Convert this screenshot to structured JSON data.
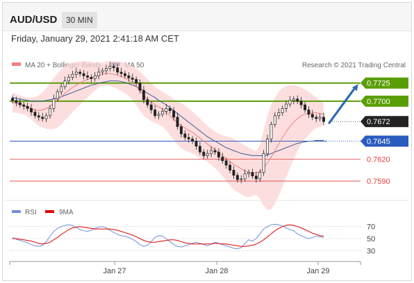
{
  "header": {
    "pair": "AUD/USD",
    "interval": "30 MIN"
  },
  "datetime": "Friday, January 29, 2021 2:41:18 AM CET",
  "legend": {
    "ma20_bollinger": "MA 20 + Bollinger Bands",
    "ma50": "MA 50",
    "research": "Research © 2021 Trading Central"
  },
  "rsi_legend": {
    "rsi": "RSI",
    "ma9": "9MA"
  },
  "colors": {
    "support_resistance": "#5a9e07",
    "current_line": "#2a5bbf",
    "support": "#e23c3c",
    "bollinger": "#fcd3d3",
    "ma20": "#f08080",
    "ma50": "#3a5d9a",
    "arrow": "#2d69b5",
    "rsi": "#6d8fdc",
    "rsi_ma": "#e00000",
    "candle": "#222222"
  },
  "chart_data": [
    {
      "type": "candlestick",
      "title": "AUD/USD",
      "timeframe": "30 MIN",
      "x_ticks": [
        "Jan 27",
        "Jan 28",
        "Jan 29"
      ],
      "ylim": [
        0.757,
        0.774
      ],
      "levels": [
        {
          "label": "0.7725",
          "value": 0.7725,
          "kind": "resistance"
        },
        {
          "label": "0.7700",
          "value": 0.77,
          "kind": "resistance"
        },
        {
          "label": "0.7672",
          "value": 0.7672,
          "kind": "last"
        },
        {
          "label": "0.7645",
          "value": 0.7645,
          "kind": "pivot"
        },
        {
          "label": "0.7620",
          "value": 0.762,
          "kind": "support"
        },
        {
          "label": "0.7590",
          "value": 0.759,
          "kind": "support"
        }
      ],
      "price_path": [
        0.7701,
        0.7698,
        0.7695,
        0.7693,
        0.769,
        0.7685,
        0.768,
        0.7678,
        0.7676,
        0.768,
        0.769,
        0.7703,
        0.7713,
        0.772,
        0.7728,
        0.7733,
        0.7737,
        0.774,
        0.7738,
        0.7735,
        0.7733,
        0.7731,
        0.7735,
        0.774,
        0.7742,
        0.7745,
        0.7748,
        0.7746,
        0.774,
        0.7738,
        0.7735,
        0.7732,
        0.773,
        0.7725,
        0.7715,
        0.7702,
        0.7695,
        0.7688,
        0.768,
        0.7682,
        0.7686,
        0.769,
        0.7687,
        0.7678,
        0.7665,
        0.7655,
        0.765,
        0.7648,
        0.7645,
        0.7638,
        0.763,
        0.7625,
        0.7628,
        0.7632,
        0.763,
        0.7623,
        0.7618,
        0.7612,
        0.7605,
        0.7598,
        0.7592,
        0.7593,
        0.76,
        0.7602,
        0.7597,
        0.7593,
        0.7602,
        0.7628,
        0.7648,
        0.7668,
        0.768,
        0.7684,
        0.769,
        0.7696,
        0.7701,
        0.7703,
        0.77,
        0.7695,
        0.7688,
        0.7682,
        0.7678,
        0.7676,
        0.7678,
        0.7672
      ],
      "ma20": [
        0.7698,
        0.7697,
        0.7696,
        0.7694,
        0.7692,
        0.769,
        0.7688,
        0.7687,
        0.7688,
        0.769,
        0.7693,
        0.7697,
        0.7701,
        0.7706,
        0.7711,
        0.7715,
        0.7719,
        0.7722,
        0.7725,
        0.7728,
        0.773,
        0.7732,
        0.7734,
        0.7736,
        0.7737,
        0.7738,
        0.7738,
        0.7737,
        0.7736,
        0.7734,
        0.7732,
        0.7729,
        0.7725,
        0.772,
        0.7714,
        0.7708,
        0.7703,
        0.7699,
        0.7695,
        0.7692,
        0.7689,
        0.7685,
        0.768,
        0.7675,
        0.767,
        0.7666,
        0.7663,
        0.766,
        0.7657,
        0.7653,
        0.7649,
        0.7645,
        0.7641,
        0.7637,
        0.7633,
        0.7629,
        0.7625,
        0.7621,
        0.7617,
        0.7613,
        0.761,
        0.7607,
        0.7604,
        0.7602,
        0.7601,
        0.7601,
        0.7603,
        0.7608,
        0.7615,
        0.7623,
        0.7632,
        0.7641,
        0.765,
        0.7658,
        0.7665,
        0.7671,
        0.7676,
        0.768,
        0.7682,
        0.7683,
        0.7684,
        0.7684,
        0.7683,
        0.7682
      ],
      "ma50": [
        0.7705,
        0.7704,
        0.7703,
        0.7702,
        0.7701,
        0.77,
        0.77,
        0.77,
        0.77,
        0.7701,
        0.7702,
        0.7703,
        0.7705,
        0.7706,
        0.7708,
        0.771,
        0.7712,
        0.7714,
        0.7716,
        0.7718,
        0.772,
        0.7722,
        0.7723,
        0.7725,
        0.7726,
        0.7727,
        0.7728,
        0.7728,
        0.7728,
        0.7727,
        0.7726,
        0.7724,
        0.7722,
        0.772,
        0.7717,
        0.7714,
        0.7711,
        0.7708,
        0.7705,
        0.7701,
        0.7698,
        0.7695,
        0.7691,
        0.7687,
        0.7683,
        0.7679,
        0.7675,
        0.7671,
        0.7667,
        0.7663,
        0.7659,
        0.7655,
        0.7651,
        0.7648,
        0.7645,
        0.7642,
        0.7639,
        0.7636,
        0.7634,
        0.7632,
        0.763,
        0.7628,
        0.7627,
        0.7626,
        0.7625,
        0.7625,
        0.7625,
        0.7625,
        0.7626,
        0.7628,
        0.763,
        0.7632,
        0.7634,
        0.7636,
        0.7638,
        0.764,
        0.7642,
        0.7643,
        0.7644,
        0.7645,
        0.7645,
        0.7646,
        0.7646,
        0.7646
      ],
      "bollinger_upper": [
        0.7712,
        0.771,
        0.7708,
        0.7706,
        0.7705,
        0.7705,
        0.7706,
        0.7708,
        0.7712,
        0.7718,
        0.7725,
        0.7732,
        0.7738,
        0.7744,
        0.7748,
        0.7751,
        0.7753,
        0.7754,
        0.7755,
        0.7755,
        0.7755,
        0.7754,
        0.7753,
        0.7753,
        0.7753,
        0.7754,
        0.7755,
        0.7755,
        0.7755,
        0.7754,
        0.7753,
        0.7751,
        0.7748,
        0.7745,
        0.7741,
        0.7736,
        0.773,
        0.7725,
        0.772,
        0.7716,
        0.7713,
        0.771,
        0.7707,
        0.7703,
        0.77,
        0.7697,
        0.7694,
        0.769,
        0.7686,
        0.7681,
        0.7676,
        0.7671,
        0.7666,
        0.7662,
        0.7658,
        0.7655,
        0.7653,
        0.7652,
        0.765,
        0.7648,
        0.7645,
        0.7642,
        0.7639,
        0.7636,
        0.7633,
        0.7631,
        0.764,
        0.766,
        0.768,
        0.7695,
        0.7705,
        0.7713,
        0.7718,
        0.7721,
        0.7722,
        0.7722,
        0.7721,
        0.7719,
        0.7716,
        0.7713,
        0.7709,
        0.7705,
        0.7701,
        0.7698
      ],
      "bollinger_lower": [
        0.7684,
        0.7684,
        0.7683,
        0.7682,
        0.7679,
        0.7675,
        0.767,
        0.7666,
        0.7664,
        0.7662,
        0.7661,
        0.7662,
        0.7664,
        0.7668,
        0.7674,
        0.7679,
        0.7685,
        0.769,
        0.7695,
        0.7701,
        0.7705,
        0.771,
        0.7715,
        0.7719,
        0.7721,
        0.7722,
        0.7721,
        0.7719,
        0.7717,
        0.7714,
        0.7711,
        0.7707,
        0.7702,
        0.7695,
        0.7687,
        0.768,
        0.7676,
        0.7673,
        0.767,
        0.7668,
        0.7665,
        0.766,
        0.7653,
        0.7647,
        0.764,
        0.7635,
        0.7632,
        0.763,
        0.7628,
        0.7625,
        0.7622,
        0.7619,
        0.7616,
        0.7612,
        0.7608,
        0.7603,
        0.7597,
        0.759,
        0.7584,
        0.7578,
        0.7575,
        0.7572,
        0.7569,
        0.7568,
        0.7569,
        0.7571,
        0.7566,
        0.7556,
        0.755,
        0.7551,
        0.7559,
        0.7569,
        0.7582,
        0.7595,
        0.7608,
        0.762,
        0.7631,
        0.7641,
        0.7648,
        0.7653,
        0.7659,
        0.7663,
        0.7665,
        0.7666
      ],
      "projection": {
        "from": 0.7672,
        "to": 0.7725
      }
    },
    {
      "type": "line",
      "title": "RSI",
      "series": [
        {
          "name": "RSI",
          "values": [
            52,
            49,
            47,
            45,
            43,
            40,
            38,
            37,
            39,
            45,
            54,
            62,
            67,
            70,
            72,
            73,
            72,
            69,
            65,
            63,
            62,
            64,
            67,
            69,
            70,
            68,
            64,
            60,
            57,
            55,
            54,
            52,
            49,
            45,
            40,
            37,
            39,
            45,
            52,
            55,
            54,
            50,
            45,
            40,
            37,
            36,
            38,
            40,
            42,
            44,
            42,
            40,
            38,
            41,
            44,
            42,
            40,
            38,
            36,
            34,
            33,
            35,
            42,
            48,
            46,
            50,
            58,
            66,
            70,
            73,
            74,
            73,
            71,
            68,
            65,
            63,
            58,
            55,
            52,
            50,
            52,
            54,
            53,
            52
          ]
        },
        {
          "name": "9MA",
          "values": [
            50,
            50,
            49,
            48,
            47,
            46,
            44,
            42,
            41,
            42,
            44,
            48,
            52,
            57,
            61,
            65,
            68,
            69,
            70,
            69,
            68,
            67,
            66,
            66,
            66,
            66,
            66,
            65,
            64,
            62,
            60,
            58,
            56,
            53,
            50,
            47,
            45,
            44,
            44,
            45,
            46,
            47,
            48,
            48,
            47,
            45,
            43,
            42,
            41,
            41,
            41,
            41,
            41,
            41,
            42,
            42,
            41,
            41,
            40,
            39,
            38,
            37,
            37,
            38,
            39,
            41,
            44,
            48,
            53,
            58,
            63,
            67,
            70,
            72,
            73,
            72,
            70,
            68,
            65,
            62,
            59,
            57,
            55,
            54
          ]
        }
      ],
      "y_ticks": [
        70,
        50,
        30
      ],
      "ylim": [
        20,
        80
      ]
    }
  ]
}
